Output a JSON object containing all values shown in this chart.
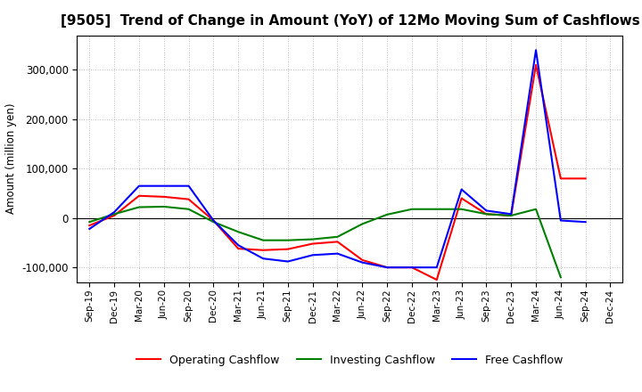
{
  "title": "[9505]  Trend of Change in Amount (YoY) of 12Mo Moving Sum of Cashflows",
  "ylabel": "Amount (million yen)",
  "x_labels": [
    "Sep-19",
    "Dec-19",
    "Mar-20",
    "Jun-20",
    "Sep-20",
    "Dec-20",
    "Mar-21",
    "Jun-21",
    "Sep-21",
    "Dec-21",
    "Mar-22",
    "Jun-22",
    "Sep-22",
    "Dec-22",
    "Mar-23",
    "Jun-23",
    "Sep-23",
    "Dec-23",
    "Mar-24",
    "Jun-24",
    "Sep-24",
    "Dec-24"
  ],
  "operating_cashflow": [
    -15000,
    5000,
    45000,
    43000,
    38000,
    -5000,
    -62000,
    -65000,
    -63000,
    -52000,
    -48000,
    -85000,
    -100000,
    -100000,
    -125000,
    40000,
    8000,
    5000,
    310000,
    80000,
    80000,
    null
  ],
  "investing_cashflow": [
    -8000,
    8000,
    22000,
    23000,
    18000,
    -8000,
    -28000,
    -45000,
    -45000,
    -43000,
    -38000,
    -12000,
    7000,
    18000,
    18000,
    18000,
    8000,
    5000,
    18000,
    -120000,
    null,
    null
  ],
  "free_cashflow": [
    -22000,
    12000,
    65000,
    65000,
    65000,
    -5000,
    -55000,
    -82000,
    -88000,
    -75000,
    -72000,
    -90000,
    -100000,
    -100000,
    -100000,
    58000,
    15000,
    8000,
    340000,
    -5000,
    -8000,
    null
  ],
  "colors": {
    "operating": "#FF0000",
    "investing": "#008000",
    "free": "#0000FF"
  },
  "ylim": [
    -130000,
    370000
  ],
  "yticks": [
    -100000,
    0,
    100000,
    200000,
    300000
  ],
  "grid_color": "#bbbbbb",
  "background_color": "#ffffff",
  "title_fontsize": 11,
  "legend_fontsize": 9
}
